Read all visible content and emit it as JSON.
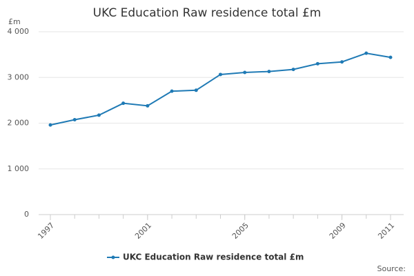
{
  "chart_data": {
    "type": "line",
    "title": "UKC Education Raw residence total £m",
    "y_unit": "£m",
    "source": "Source:",
    "x": [
      1997,
      1998,
      1999,
      2000,
      2001,
      2002,
      2003,
      2004,
      2005,
      2006,
      2007,
      2008,
      2009,
      2010,
      2011
    ],
    "series": [
      {
        "name": "UKC Education Raw residence total £m",
        "color": "#1f7ab5",
        "values": [
          1960,
          2075,
          2175,
          2435,
          2380,
          2700,
          2720,
          3065,
          3110,
          3130,
          3175,
          3300,
          3340,
          3530,
          3440
        ]
      }
    ],
    "xlim": [
      1997,
      2011
    ],
    "xticks": [
      1997,
      2001,
      2005,
      2009,
      2011
    ],
    "ylim": [
      0,
      4000
    ],
    "yticks": [
      0,
      {
        "value": 1000,
        "label": "1 000"
      },
      {
        "value": 2000,
        "label": "2 000"
      },
      {
        "value": 3000,
        "label": "3 000"
      },
      {
        "value": 4000,
        "label": "4 000"
      }
    ],
    "grid": true
  }
}
